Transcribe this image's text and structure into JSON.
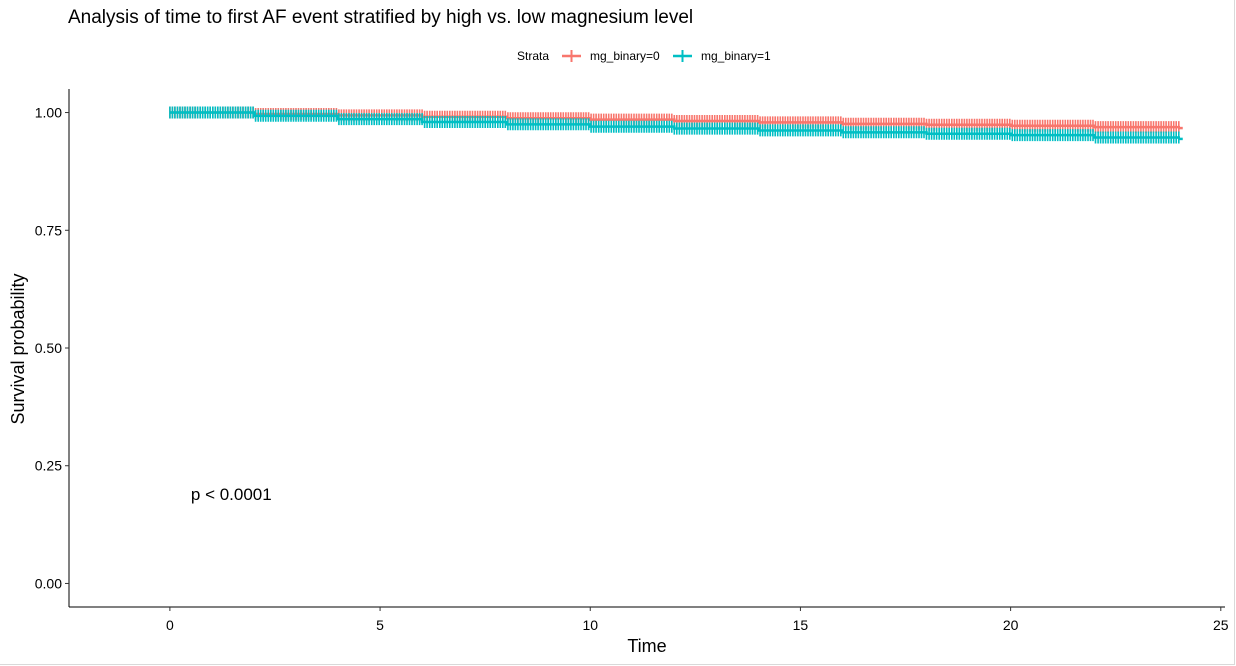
{
  "chart_data": {
    "type": "line",
    "title": "Analysis of time to first AF event stratified by high vs. low magnesium level",
    "xlabel": "Time",
    "ylabel": "Survival probability",
    "xlim": [
      -2.4,
      25.1
    ],
    "ylim": [
      -0.05,
      1.05
    ],
    "x_ticks": [
      0,
      5,
      10,
      15,
      20,
      25
    ],
    "x_tick_labels": [
      "0",
      "5",
      "10",
      "15",
      "20",
      "25"
    ],
    "y_ticks": [
      0.0,
      0.25,
      0.5,
      0.75,
      1.0
    ],
    "y_tick_labels": [
      "0.00",
      "0.25",
      "0.50",
      "0.75",
      "1.00"
    ],
    "grid": false,
    "legend": {
      "title": "Strata",
      "position": "top"
    },
    "series": [
      {
        "name": "mg_binary=0",
        "color": "#F8766D",
        "x": [
          0,
          2,
          4,
          6,
          8,
          10,
          12,
          14,
          16,
          18,
          20,
          22,
          24
        ],
        "y": [
          1.0,
          0.997,
          0.994,
          0.991,
          0.988,
          0.985,
          0.982,
          0.979,
          0.976,
          0.974,
          0.972,
          0.969,
          0.967
        ]
      },
      {
        "name": "mg_binary=1",
        "color": "#00BFC4",
        "x": [
          0,
          2,
          4,
          6,
          8,
          10,
          12,
          14,
          16,
          18,
          20,
          22,
          24
        ],
        "y": [
          1.0,
          0.993,
          0.986,
          0.98,
          0.975,
          0.97,
          0.966,
          0.962,
          0.958,
          0.955,
          0.952,
          0.947,
          0.944
        ]
      }
    ],
    "annotations": [
      {
        "text": "p < 0.0001",
        "x": 0.5,
        "y": 0.19
      }
    ]
  }
}
